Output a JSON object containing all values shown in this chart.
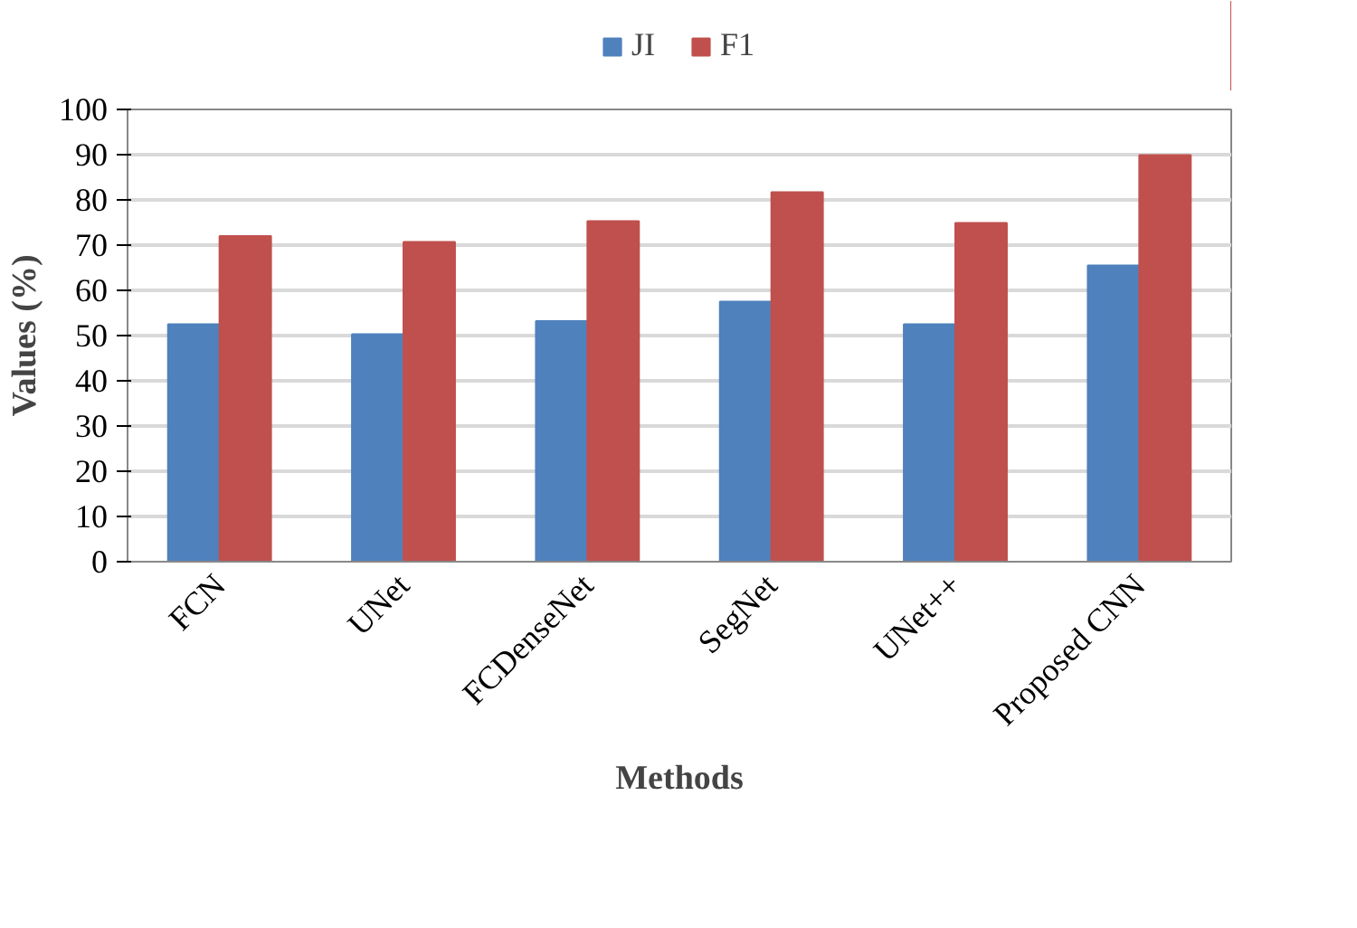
{
  "chart_data": {
    "type": "bar",
    "xlabel": "Methods",
    "ylabel": "Values (%)",
    "categories": [
      "FCN",
      "UNet",
      "FCDenseNet",
      "SegNet",
      "UNet++",
      "Proposed CNN"
    ],
    "series": [
      {
        "name": "JI",
        "color": "#4f81bd",
        "values": [
          52.5,
          50.3,
          53.2,
          57.5,
          52.5,
          65.5
        ]
      },
      {
        "name": "F1",
        "color": "#c0504d",
        "values": [
          72.0,
          70.7,
          75.3,
          81.7,
          74.9,
          89.9
        ]
      }
    ],
    "ylim": [
      0,
      100
    ],
    "yticks": [
      0,
      10,
      20,
      30,
      40,
      50,
      60,
      70,
      80,
      90,
      100
    ],
    "grid": "y",
    "legend": "top"
  }
}
